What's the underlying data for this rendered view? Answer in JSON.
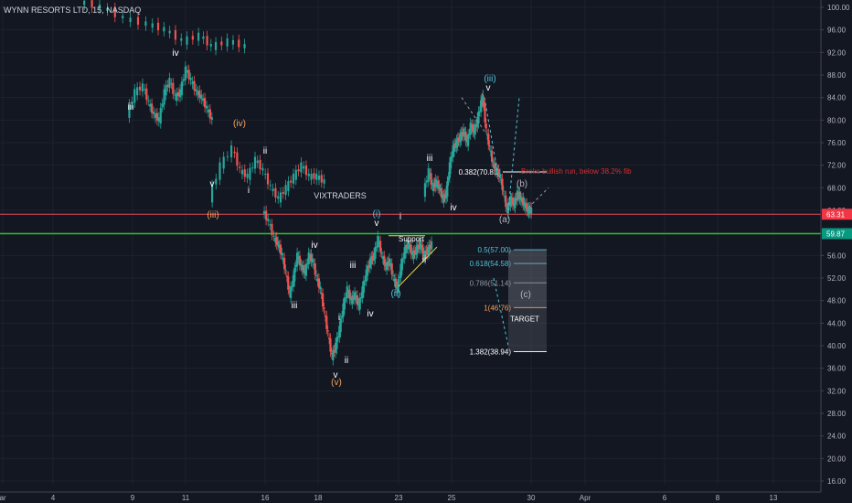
{
  "chart_data": {
    "type": "candlestick",
    "title": "WYNN RESORTS LTD, 15, NASDAQ",
    "watermark": "VIXTRADERS",
    "y_axis": {
      "min": 15,
      "max": 101,
      "ticks": [
        "100.00",
        "96.00",
        "92.00",
        "88.00",
        "84.00",
        "80.00",
        "76.00",
        "72.00",
        "68.00",
        "64.00",
        "60.00",
        "56.00",
        "52.00",
        "48.00",
        "44.00",
        "40.00",
        "36.00",
        "32.00",
        "28.00",
        "24.00",
        "20.00",
        "16.00"
      ],
      "position": "right"
    },
    "x_axis": {
      "ticks": [
        "ar",
        "4",
        "9",
        "11",
        "16",
        "18",
        "23",
        "25",
        "30",
        "Apr",
        "6",
        "8",
        "13"
      ]
    },
    "price_labels": [
      {
        "text": "63.31",
        "value": 63.31,
        "color": "#f23645"
      },
      {
        "text": "59.87",
        "value": 59.87,
        "color": "#089981"
      }
    ],
    "horizontal_lines": [
      {
        "value": 63.31,
        "color": "#e84c5c"
      },
      {
        "value": 59.87,
        "color": "#1fc42c"
      }
    ],
    "series": [
      {
        "segment": 1,
        "points": [
          [
            0,
            101
          ],
          [
            4,
            100
          ],
          [
            8,
            98
          ],
          [
            12,
            97
          ],
          [
            15,
            96
          ],
          [
            18,
            94
          ],
          [
            21,
            95
          ],
          [
            23,
            93
          ],
          [
            26,
            94
          ],
          [
            29,
            93
          ]
        ]
      },
      {
        "segment": 2,
        "points": [
          [
            0,
            81
          ],
          [
            3,
            85
          ],
          [
            6,
            86
          ],
          [
            8,
            83
          ],
          [
            10,
            81
          ],
          [
            12,
            80
          ],
          [
            14,
            85
          ],
          [
            16,
            87
          ],
          [
            18,
            84
          ],
          [
            20,
            85
          ],
          [
            22,
            89
          ],
          [
            24,
            87
          ],
          [
            26,
            85
          ],
          [
            28,
            84
          ],
          [
            30,
            82
          ],
          [
            32,
            80
          ]
        ]
      },
      {
        "segment": 3,
        "points": [
          [
            0,
            66
          ],
          [
            3,
            72
          ],
          [
            6,
            75
          ],
          [
            8,
            71
          ],
          [
            10,
            70
          ],
          [
            12,
            73
          ],
          [
            14,
            71
          ],
          [
            16,
            68
          ],
          [
            18,
            66
          ],
          [
            20,
            68
          ],
          [
            22,
            70
          ],
          [
            24,
            72
          ],
          [
            26,
            70
          ],
          [
            28,
            70
          ],
          [
            30,
            69
          ]
        ]
      },
      {
        "segment": 4,
        "points": [
          [
            0,
            64
          ],
          [
            3,
            62
          ],
          [
            6,
            59
          ],
          [
            8,
            58
          ],
          [
            10,
            56
          ],
          [
            12,
            53
          ],
          [
            14,
            49
          ],
          [
            16,
            52
          ],
          [
            18,
            56
          ],
          [
            20,
            54
          ],
          [
            22,
            53
          ],
          [
            24,
            56
          ],
          [
            26,
            55
          ],
          [
            28,
            52
          ],
          [
            30,
            50
          ],
          [
            32,
            46
          ],
          [
            34,
            42
          ],
          [
            36,
            38
          ],
          [
            38,
            40
          ],
          [
            40,
            43
          ],
          [
            42,
            47
          ],
          [
            44,
            50
          ],
          [
            46,
            48
          ],
          [
            48,
            49
          ],
          [
            50,
            47
          ],
          [
            52,
            50
          ],
          [
            54,
            53
          ],
          [
            56,
            55
          ],
          [
            58,
            56
          ],
          [
            60,
            59
          ],
          [
            62,
            56
          ],
          [
            64,
            54
          ],
          [
            66,
            55
          ],
          [
            68,
            52
          ],
          [
            70,
            50
          ],
          [
            72,
            54
          ],
          [
            74,
            57
          ],
          [
            76,
            58
          ],
          [
            78,
            56
          ],
          [
            80,
            57
          ],
          [
            82,
            58
          ],
          [
            84,
            56
          ],
          [
            86,
            57
          ],
          [
            88,
            58
          ]
        ]
      },
      {
        "segment": 5,
        "points": [
          [
            0,
            67
          ],
          [
            3,
            71
          ],
          [
            5,
            68
          ],
          [
            7,
            69
          ],
          [
            9,
            68
          ],
          [
            11,
            66
          ],
          [
            13,
            67
          ],
          [
            15,
            72
          ],
          [
            17,
            75
          ],
          [
            19,
            76
          ],
          [
            21,
            77
          ],
          [
            23,
            78
          ],
          [
            25,
            76
          ],
          [
            27,
            79
          ],
          [
            29,
            78
          ],
          [
            31,
            80
          ],
          [
            33,
            83
          ],
          [
            34,
            84
          ],
          [
            36,
            78
          ],
          [
            38,
            75
          ],
          [
            40,
            72
          ],
          [
            42,
            71
          ],
          [
            44,
            70
          ],
          [
            46,
            67
          ],
          [
            48,
            64
          ],
          [
            50,
            66
          ],
          [
            52,
            65
          ],
          [
            54,
            67
          ],
          [
            56,
            66
          ],
          [
            58,
            65
          ],
          [
            60,
            64
          ],
          [
            62,
            64
          ]
        ]
      }
    ],
    "wave_labels": [
      {
        "text": "iii",
        "color": "#ffffff"
      },
      {
        "text": "iv",
        "color": "#ffffff"
      },
      {
        "text": "v",
        "color": "#ffffff"
      },
      {
        "text": "(iv)",
        "color": "#f5a35c"
      },
      {
        "text": "(iii)",
        "color": "#f5a35c"
      },
      {
        "text": "i",
        "color": "#ffffff"
      },
      {
        "text": "ii",
        "color": "#ffffff"
      },
      {
        "text": "iii",
        "color": "#ffffff"
      },
      {
        "text": "iv",
        "color": "#ffffff"
      },
      {
        "text": "iii",
        "color": "#ffffff"
      },
      {
        "text": "i",
        "color": "#ffffff"
      },
      {
        "text": "iv",
        "color": "#ffffff"
      },
      {
        "text": "v",
        "color": "#ffffff"
      },
      {
        "text": "ii",
        "color": "#ffffff"
      },
      {
        "text": "(v)",
        "color": "#f5a35c"
      },
      {
        "text": "(i)",
        "color": "#4fc3d9"
      },
      {
        "text": "v",
        "color": "#ffffff"
      },
      {
        "text": "i",
        "color": "#ffffff"
      },
      {
        "text": "ii",
        "color": "#ffffff"
      },
      {
        "text": "(ii)",
        "color": "#4fc3d9"
      },
      {
        "text": "iii",
        "color": "#ffffff"
      },
      {
        "text": "iv",
        "color": "#ffffff"
      },
      {
        "text": "(iii)",
        "color": "#4fc3d9"
      },
      {
        "text": "v",
        "color": "#ffffff"
      },
      {
        "text": "(a)",
        "color": "#b2b5be"
      },
      {
        "text": "(b)",
        "color": "#b2b5be"
      },
      {
        "text": "(c)",
        "color": "#b2b5be"
      }
    ],
    "annotations": {
      "support": "Support",
      "broke_note": "Broke bullish run, below 38.2% fib",
      "target": "TARGET",
      "fib_038": "0.382(70.81)",
      "fib_05": "0.5(57.00)",
      "fib_0618": "0.618(54.58)",
      "fib_0786": "0.786(51.14)",
      "fib_1": "1(46.76)",
      "fib_1382": "1.382(38.94)"
    },
    "fib_levels": [
      {
        "label": "0.382(70.81)",
        "value": 70.81,
        "color": "#ffffff"
      },
      {
        "label": "0.5(57.00)",
        "value": 57.0,
        "color": "#4fc3d9"
      },
      {
        "label": "0.618(54.58)",
        "value": 54.58,
        "color": "#4fc3d9"
      },
      {
        "label": "0.786(51.14)",
        "value": 51.14,
        "color": "#9598a1"
      },
      {
        "label": "1(46.76)",
        "value": 46.76,
        "color": "#f5a35c"
      },
      {
        "label": "1.382(38.94)",
        "value": 38.94,
        "color": "#ffffff"
      }
    ],
    "colors": {
      "up": "#26a69a",
      "down": "#ef5350",
      "background": "#131722",
      "grid": "#1e222d",
      "axis_text": "#b2b5be"
    }
  }
}
